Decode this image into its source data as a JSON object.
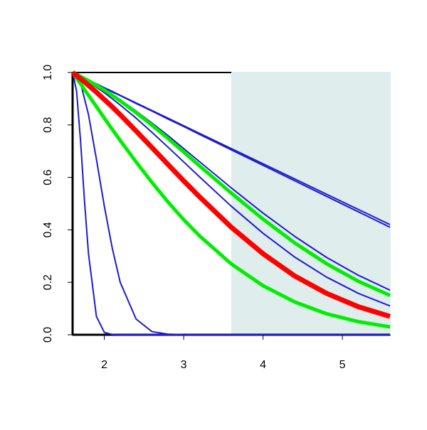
{
  "chart_data": {
    "type": "line",
    "x": [
      1.6,
      1.65,
      1.7,
      1.75,
      1.8,
      1.9,
      2.0,
      2.1,
      2.2,
      2.4,
      2.6,
      2.8,
      3.0,
      3.2,
      3.6,
      4.0,
      4.4,
      4.8,
      5.2,
      5.6
    ],
    "highlight_x": [
      3.6,
      5.6
    ],
    "highlight_color": "#e0eded",
    "series": [
      {
        "color": "#1c1ccc",
        "line_width": 2,
        "values": [
          1,
          0.993,
          0.986,
          0.978,
          0.971,
          0.957,
          0.942,
          0.928,
          0.913,
          0.884,
          0.855,
          0.826,
          0.797,
          0.768,
          0.71,
          0.652,
          0.594,
          0.536,
          0.478,
          0.42
        ]
      },
      {
        "color": "#1c1ccc",
        "line_width": 2,
        "values": [
          1,
          0.993,
          0.985,
          0.978,
          0.971,
          0.956,
          0.941,
          0.926,
          0.912,
          0.882,
          0.853,
          0.823,
          0.794,
          0.764,
          0.705,
          0.646,
          0.587,
          0.528,
          0.469,
          0.41
        ]
      },
      {
        "color": "#1c1ccc",
        "line_width": 2,
        "values": [
          1,
          0.93,
          0.74,
          0.51,
          0.31,
          0.07,
          0.009,
          0.001,
          0,
          0,
          0,
          0,
          0,
          0,
          0,
          0,
          0,
          0,
          0,
          0
        ]
      },
      {
        "color": "#1c1ccc",
        "line_width": 2,
        "values": [
          1,
          0.99,
          0.96,
          0.9,
          0.84,
          0.67,
          0.49,
          0.33,
          0.2,
          0.06,
          0.012,
          0.0025,
          0.0004,
          0,
          0,
          0,
          0,
          0,
          0,
          0
        ]
      },
      {
        "color": "#1c1ccc",
        "line_width": 2,
        "values": [
          1,
          0.993,
          0.986,
          0.978,
          0.97,
          0.953,
          0.935,
          0.916,
          0.896,
          0.853,
          0.807,
          0.76,
          0.71,
          0.66,
          0.56,
          0.464,
          0.375,
          0.295,
          0.227,
          0.17
        ]
      },
      {
        "color": "#1c1ccc",
        "line_width": 2,
        "values": [
          1,
          0.992,
          0.983,
          0.974,
          0.964,
          0.944,
          0.923,
          0.9,
          0.876,
          0.826,
          0.772,
          0.716,
          0.659,
          0.602,
          0.49,
          0.387,
          0.296,
          0.22,
          0.158,
          0.11
        ]
      },
      {
        "color": "#00ee00",
        "line_width": 5,
        "values": [
          1,
          0.993,
          0.985,
          0.977,
          0.969,
          0.951,
          0.933,
          0.913,
          0.892,
          0.847,
          0.799,
          0.749,
          0.697,
          0.644,
          0.54,
          0.441,
          0.35,
          0.271,
          0.204,
          0.15
        ]
      },
      {
        "color": "#00ee00",
        "line_width": 5,
        "values": [
          1,
          0.978,
          0.957,
          0.935,
          0.913,
          0.87,
          0.826,
          0.783,
          0.741,
          0.659,
          0.581,
          0.507,
          0.439,
          0.377,
          0.27,
          0.187,
          0.125,
          0.08,
          0.05,
          0.03
        ]
      },
      {
        "color": "#ff0000",
        "line_width": 7,
        "values": [
          1,
          0.988,
          0.976,
          0.964,
          0.951,
          0.925,
          0.897,
          0.869,
          0.839,
          0.777,
          0.714,
          0.65,
          0.587,
          0.526,
          0.41,
          0.309,
          0.224,
          0.158,
          0.107,
          0.07
        ]
      }
    ],
    "xlim": [
      1.6,
      5.6
    ],
    "ylim": [
      0,
      1
    ],
    "xticks": [
      2,
      3,
      4,
      5
    ],
    "yticks": [
      {
        "value": 0,
        "label": "0.0"
      },
      0.2,
      0.4,
      0.6,
      0.8,
      {
        "value": 1,
        "label": "1.0"
      }
    ]
  }
}
